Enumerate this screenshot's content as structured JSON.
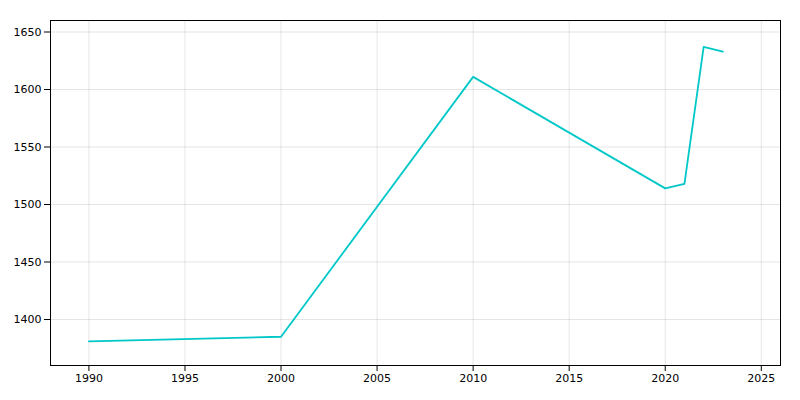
{
  "chart_data": {
    "type": "line",
    "x": [
      1990,
      2000,
      2010,
      2020,
      2021,
      2022,
      2023
    ],
    "values": [
      1381,
      1385,
      1611,
      1514,
      1518,
      1637,
      1633
    ],
    "color": "#00C8C8",
    "xlim": [
      1988,
      2026
    ],
    "ylim": [
      1360,
      1660
    ],
    "xticks": [
      1990,
      1995,
      2000,
      2005,
      2010,
      2015,
      2020,
      2025
    ],
    "yticks": [
      1400,
      1450,
      1500,
      1550,
      1600,
      1650
    ],
    "grid": true
  }
}
